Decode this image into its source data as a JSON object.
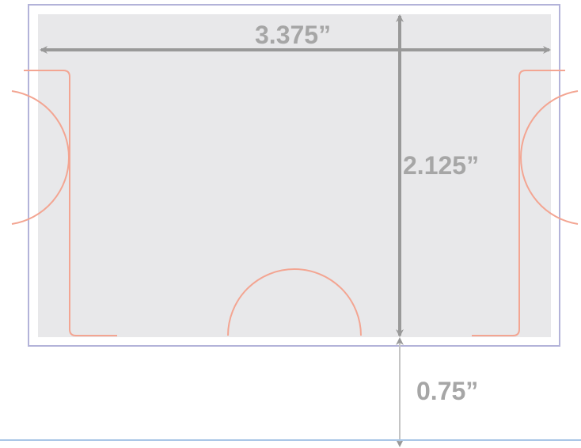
{
  "dimensions": {
    "width_label": "3.375”",
    "height_label": "2.125”",
    "offset_label": "0.75”"
  },
  "colors": {
    "outline": "#b3b3d9",
    "card_fill": "#e8e8ea",
    "cutout_stroke": "#f3a592",
    "dimension_gray": "#a6a6a6",
    "baseline": "#a9c6e6"
  }
}
